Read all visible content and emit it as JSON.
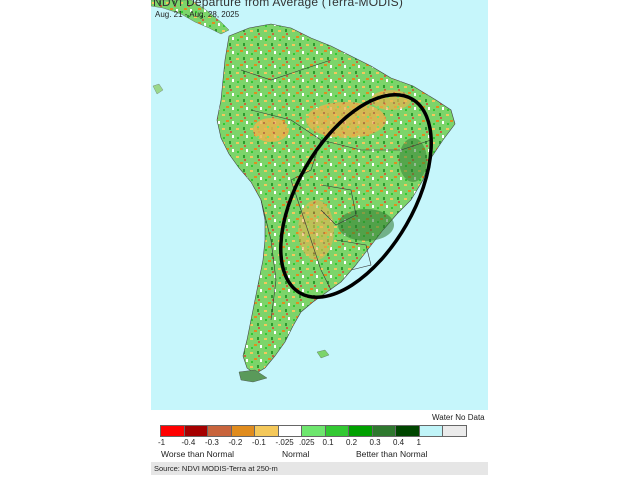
{
  "map": {
    "title": "NDVI Departure from Average (Terra-MODIS)",
    "dates": "Aug. 21 - Aug. 28, 2025",
    "highlight_ellipse": "outlined region over eastern Brazil, Paraguay and Uruguay",
    "colors": {
      "ocean": "#c6f6fb",
      "land_base": "#7cd46a",
      "outline": "#000000"
    }
  },
  "legend": {
    "water_no_data_label": "Water No Data",
    "swatches": [
      "#ff0000",
      "#a50000",
      "#c8643c",
      "#e08c1e",
      "#f4c85a",
      "#ffffff",
      "#6ee66e",
      "#32c832",
      "#00a000",
      "#2e782e",
      "#004600",
      "#c0f4f8",
      "#ebebeb"
    ],
    "ticks": [
      "-1",
      "-0.4",
      "-0.3",
      "-0.2",
      "-0.1",
      "-.025",
      ".025",
      "0.1",
      "0.2",
      "0.3",
      "0.4",
      "1"
    ],
    "categories": {
      "worse": "Worse than Normal",
      "normal": "Normal",
      "better": "Better than Normal"
    }
  },
  "source": "Source: NDVI MODIS-Terra at 250-m"
}
